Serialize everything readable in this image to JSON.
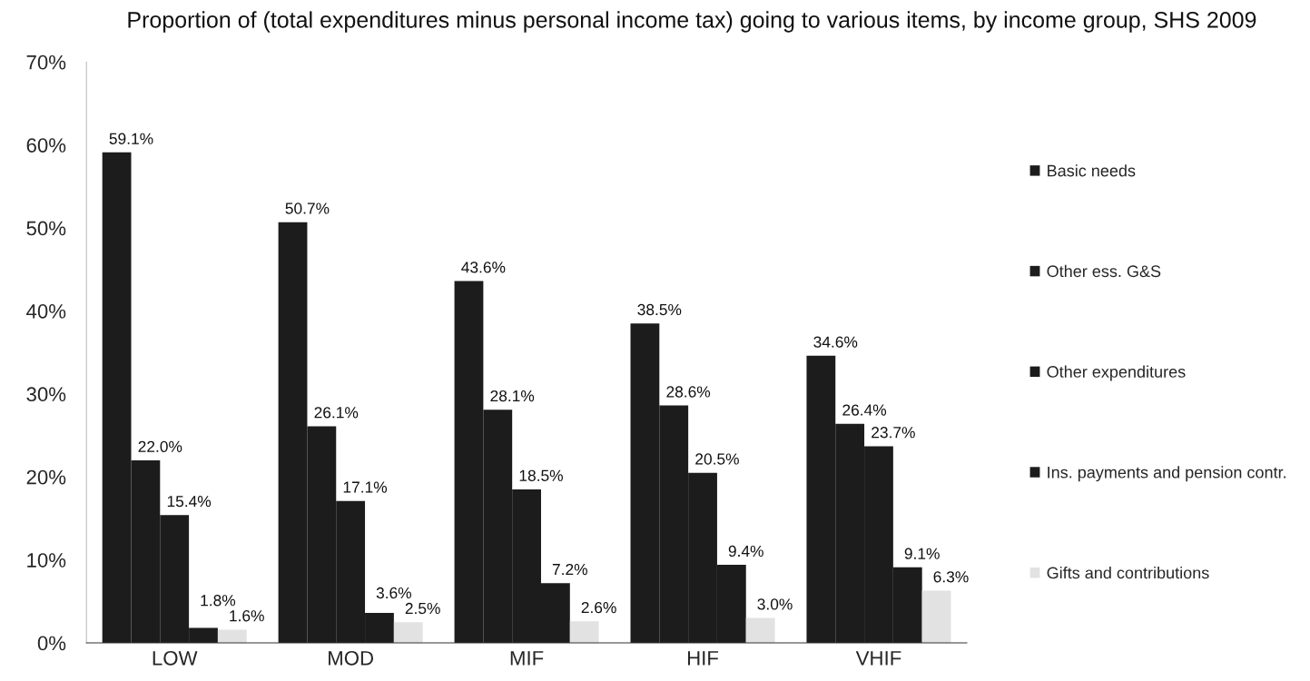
{
  "chart_data": {
    "type": "bar",
    "title": "Proportion of (total expenditures minus personal income tax) going to various items, by income group, SHS 2009",
    "categories": [
      "LOW",
      "MOD",
      "MIF",
      "HIF",
      "VHIF"
    ],
    "series": [
      {
        "name": "Basic needs",
        "color": "#1c1c1c",
        "values": [
          59.1,
          50.7,
          43.6,
          38.5,
          34.6
        ],
        "value_labels": [
          "59.1%",
          "50.7%",
          "43.6%",
          "38.5%",
          "34.6%"
        ]
      },
      {
        "name": "Other ess. G&S",
        "color": "#1c1c1c",
        "values": [
          22.0,
          26.1,
          28.1,
          28.6,
          26.4
        ],
        "value_labels": [
          "22.0%",
          "26.1%",
          "28.1%",
          "28.6%",
          "26.4%"
        ]
      },
      {
        "name": "Other expenditures",
        "color": "#1c1c1c",
        "values": [
          15.4,
          17.1,
          18.5,
          20.5,
          23.7
        ],
        "value_labels": [
          "15.4%",
          "17.1%",
          "18.5%",
          "20.5%",
          "23.7%"
        ]
      },
      {
        "name": "Ins. payments and pension contr.",
        "color": "#1c1c1c",
        "values": [
          1.8,
          3.6,
          7.2,
          9.4,
          9.1
        ],
        "value_labels": [
          "1.8%",
          "3.6%",
          "7.2%",
          "9.4%",
          "9.1%"
        ]
      },
      {
        "name": "Gifts and contributions",
        "color": "#e2e2e2",
        "values": [
          1.6,
          2.5,
          2.6,
          3.0,
          6.3
        ],
        "value_labels": [
          "1.6%",
          "2.5%",
          "2.6%",
          "3.0%",
          "6.3%"
        ]
      }
    ],
    "ylim": [
      0,
      70
    ],
    "yticks": [
      {
        "value": 0,
        "label": "0%"
      },
      {
        "value": 10,
        "label": "10%"
      },
      {
        "value": 20,
        "label": "20%"
      },
      {
        "value": 30,
        "label": "30%"
      },
      {
        "value": 40,
        "label": "40%"
      },
      {
        "value": 50,
        "label": "50%"
      },
      {
        "value": 60,
        "label": "60%"
      },
      {
        "value": 70,
        "label": "70%"
      }
    ],
    "grid": false,
    "legend": "right"
  }
}
